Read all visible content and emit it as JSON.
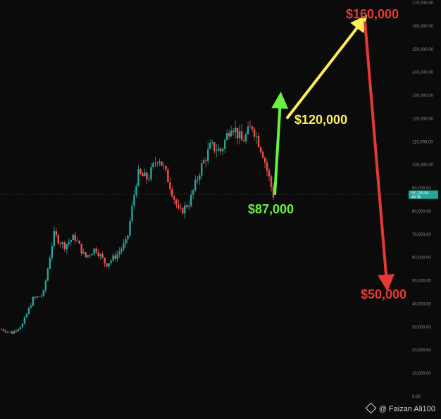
{
  "chart_data": {
    "type": "candlestick",
    "title": "",
    "xlabel": "",
    "ylabel": "",
    "ylim": [
      -2000,
      170000
    ],
    "y_ticks": [
      "0.00",
      "10,000.00",
      "20,000.00",
      "30,000.00",
      "40,000.00",
      "50,000.00",
      "60,000.00",
      "70,000.00",
      "80,000.00",
      "90,000.00",
      "100,000.00",
      "110,000.00",
      "120,000.00",
      "130,000.00",
      "140,000.00",
      "150,000.00",
      "160,000.00",
      "170,000.00"
    ],
    "y_tick_values": [
      0,
      10000,
      20000,
      30000,
      40000,
      50000,
      60000,
      70000,
      80000,
      90000,
      100000,
      110000,
      120000,
      130000,
      140000,
      150000,
      160000,
      170000
    ],
    "current_price_label": "87,130.84",
    "current_price_sublabel": "4d 9h",
    "current_price_value": 87130,
    "key_path": [
      29000,
      27500,
      31000,
      42000,
      44000,
      70000,
      65000,
      69000,
      60000,
      64000,
      57000,
      61000,
      67000,
      96000,
      94000,
      104000,
      93000,
      79000,
      84000,
      98000,
      108000,
      106000,
      118000,
      110000,
      117000,
      105000,
      87000
    ],
    "colors": {
      "up": "#26a69a",
      "down": "#ef5350",
      "background": "#0b0b0b",
      "grid": "#2a2a2a"
    },
    "annotations": [
      {
        "label": "$160,000",
        "color": "#e53935"
      },
      {
        "label": "$120,000",
        "color": "#ffee58"
      },
      {
        "label": "$87,000",
        "color": "#69f043"
      },
      {
        "label": "$50,000",
        "color": "#e53935"
      }
    ],
    "projection": [
      {
        "from": 87000,
        "to": 128000,
        "color": "#69f043"
      },
      {
        "from": 120000,
        "to": 162000,
        "color": "#ffee58"
      },
      {
        "from": 162000,
        "to": 49000,
        "color": "#e53935"
      }
    ]
  },
  "watermark": {
    "text": "@ Faizan Ali100",
    "icon": "binance-logo-icon"
  }
}
